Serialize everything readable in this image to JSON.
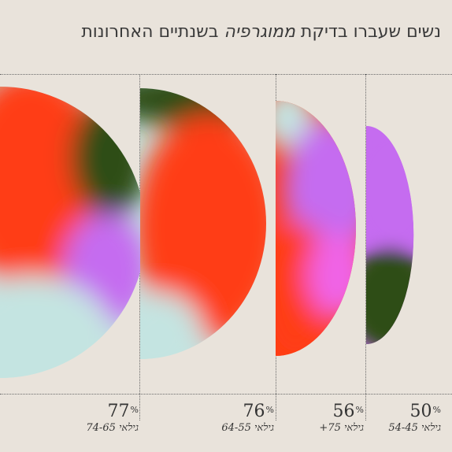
{
  "title": {
    "part1": "נשים שעברו בדיקת",
    "part2": "ממוגרפיה",
    "part3": "בשנתיים האחרונות"
  },
  "chart_data": {
    "type": "pie",
    "series": [
      {
        "age_label": "גילאי 74-65",
        "value": 77,
        "colors": [
          "#ff3d12",
          "#2f4d14",
          "#c56cf0",
          "#c4e4e1"
        ]
      },
      {
        "age_label": "גילאי 64-55",
        "value": 76,
        "colors": [
          "#2f4d14",
          "#ff3d12",
          "#c4e4e1"
        ]
      },
      {
        "age_label": "גילאי 75+",
        "value": 56,
        "colors": [
          "#c4e4e1",
          "#c56cf0",
          "#ff3d12",
          "#f064e6"
        ]
      },
      {
        "age_label": "גילאי 54-45",
        "value": 50,
        "colors": [
          "#c56cf0",
          "#2f4d14"
        ]
      }
    ],
    "unit": "%"
  }
}
